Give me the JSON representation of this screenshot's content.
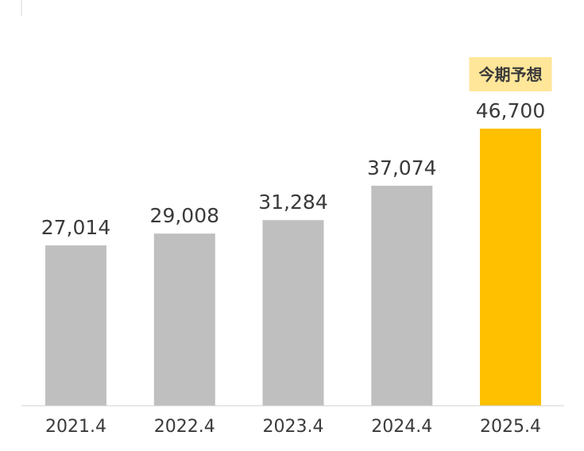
{
  "chart_data": {
    "type": "bar",
    "categories": [
      "2021.4",
      "2022.4",
      "2023.4",
      "2024.4",
      "2025.4"
    ],
    "values": [
      27014,
      29008,
      31284,
      37074,
      46700
    ],
    "value_labels": [
      "27,014",
      "29,008",
      "31,284",
      "37,074",
      "46,700"
    ],
    "highlight_index": 4,
    "highlight_badge": "今期予想",
    "ylim": [
      0,
      46700
    ],
    "grid": false,
    "legend": "none",
    "colors": {
      "bar": "#bfbfbf",
      "highlight_bar": "#ffc000",
      "badge_bg": "#ffe699",
      "text": "#3a3a3a",
      "axis": "#d0d0d0"
    }
  }
}
